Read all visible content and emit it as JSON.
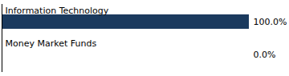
{
  "chart_data": {
    "type": "bar",
    "orientation": "horizontal",
    "categories": [
      "Information Technology",
      "Money Market Funds"
    ],
    "values": [
      100.0,
      0.0
    ],
    "value_labels": [
      "100.0%",
      "0.0%"
    ],
    "color": "#1b3a5e",
    "xlim": [
      0,
      100
    ],
    "data_labels": true,
    "tick_labels": false
  }
}
